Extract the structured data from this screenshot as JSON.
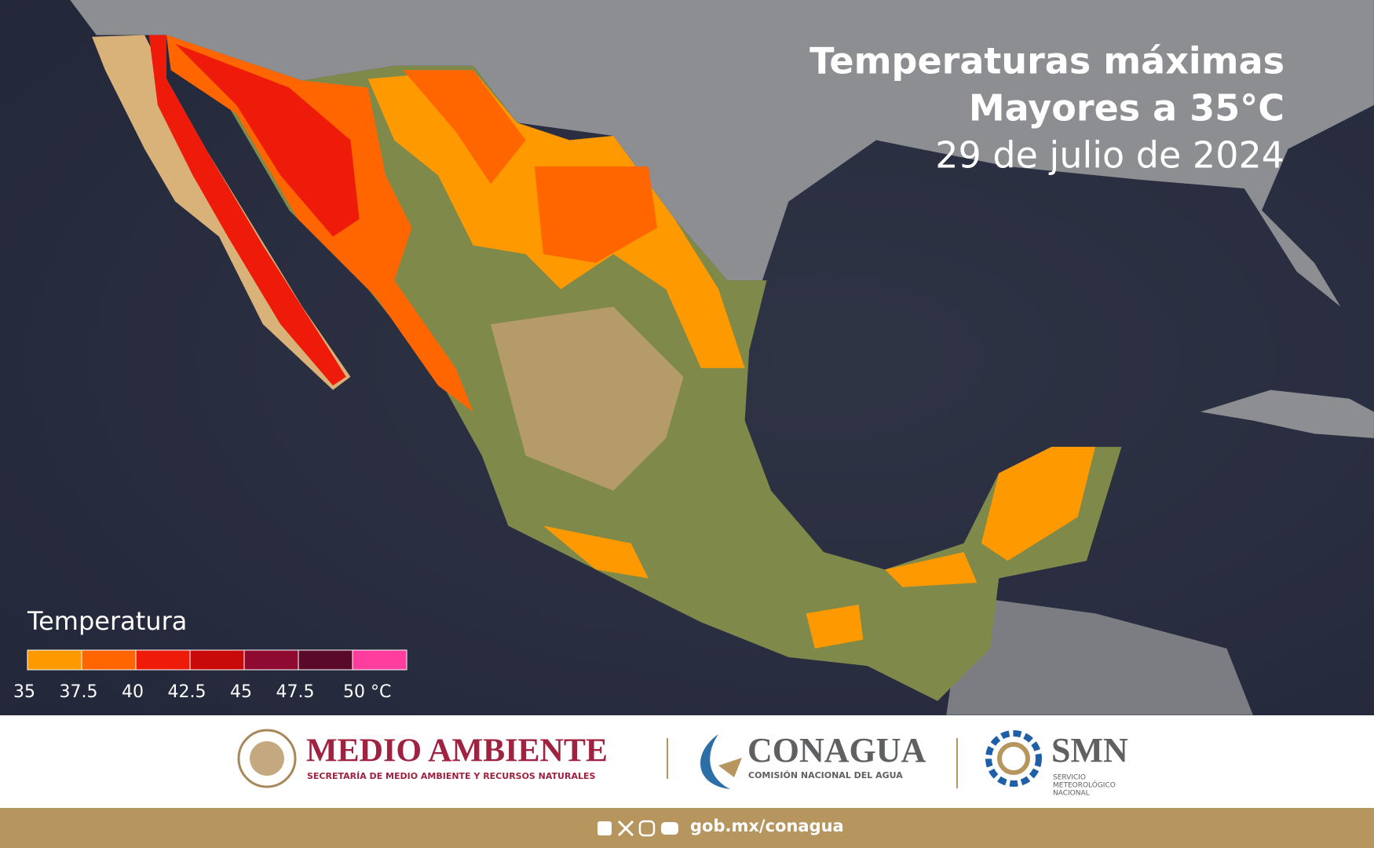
{
  "header": {
    "title": [
      "Temperaturas máximas",
      "Mayores a 35°C"
    ],
    "date": "29 de julio de 2024"
  },
  "legend": {
    "title": "Temperatura",
    "colors": [
      "#ff9900",
      "#ff6600",
      "#ee1a0a",
      "#c80a0a",
      "#8e0a30",
      "#5a0a28",
      "#ff3d9e"
    ],
    "ticks": [
      35,
      37.5,
      40,
      42.5,
      45,
      47.5,
      {
        "value": 50,
        "label": "50 °C"
      }
    ]
  },
  "footer": {
    "logos": [
      {
        "name": "MEDIO AMBIENTE",
        "subtitle": [
          "SECRETARÍA DE MEDIO AMBIENTE Y RECURSOS NATURALES"
        ]
      },
      {
        "name": "CONAGUA",
        "subtitle": [
          "COMISIÓN NACIONAL DEL AGUA"
        ]
      },
      {
        "name": "SMN",
        "subtitle": [
          "SERVICIO",
          "METEOROLÓGICO",
          "NACIONAL"
        ]
      }
    ],
    "url": "gob.mx/conagua"
  }
}
